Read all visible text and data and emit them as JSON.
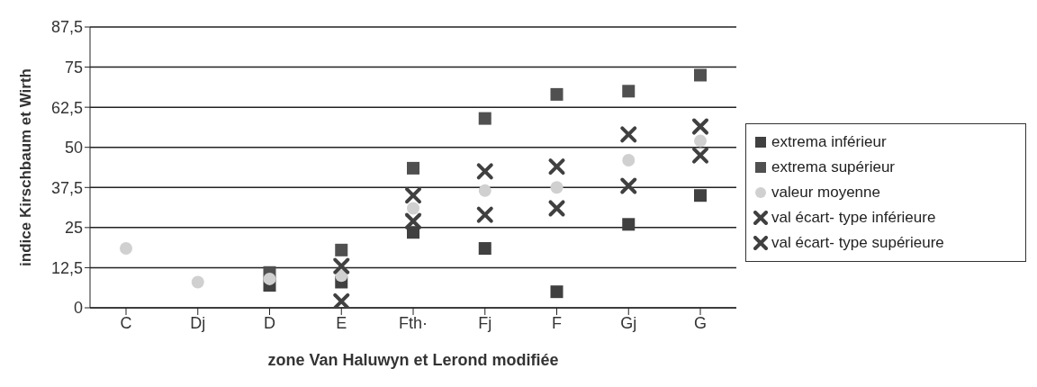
{
  "chart_data": {
    "type": "scatter",
    "xlabel": "zone Van Haluwyn et Lerond modifiée",
    "ylabel": "indice Kirschbaum et Wirth",
    "categories": [
      "C",
      "Dj",
      "D",
      "E",
      "Fth·",
      "Fj",
      "F",
      "Gj",
      "G"
    ],
    "ylim": [
      0,
      87.5
    ],
    "yticks": [
      0,
      {
        "value": 12.5,
        "label": "12,5"
      },
      25,
      {
        "value": 37.5,
        "label": "37,5"
      },
      50,
      {
        "value": 62.5,
        "label": "62,5"
      },
      75,
      {
        "value": 87.5,
        "label": "87,5"
      }
    ],
    "grid": "y",
    "legend": "right",
    "series": [
      {
        "name": "extrema inférieur",
        "color": "#404040",
        "marker": "square",
        "values": [
          null,
          null,
          7,
          8,
          23.5,
          18.5,
          5,
          26,
          35
        ]
      },
      {
        "name": "extrema supérieur",
        "color": "#505050",
        "marker": "square",
        "values": [
          null,
          null,
          11,
          18,
          43.5,
          59,
          66.5,
          67.5,
          72.5
        ]
      },
      {
        "name": "valeur moyenne",
        "color": "#d0d0d0",
        "marker": "circle",
        "values": [
          18.5,
          8,
          9,
          10,
          31,
          36.5,
          37.5,
          46,
          52
        ]
      },
      {
        "name": "val écart- type inférieure",
        "color": "#404040",
        "marker": "cross",
        "values": [
          null,
          null,
          null,
          2,
          27,
          29,
          31,
          38,
          47.5
        ]
      },
      {
        "name": "val écart- type supérieure",
        "color": "#404040",
        "marker": "cross",
        "values": [
          null,
          null,
          null,
          13,
          35,
          42.5,
          44,
          54,
          56.5
        ]
      }
    ]
  }
}
